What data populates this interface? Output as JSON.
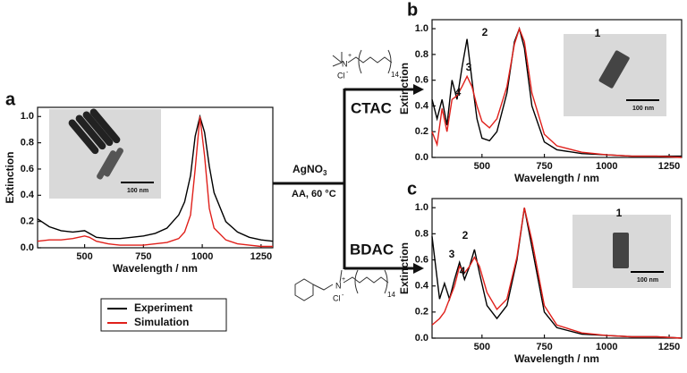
{
  "chart_data": [
    {
      "type": "line",
      "panel_label": "a",
      "x_label": "Wavelength / nm",
      "y_label": "Extinction",
      "x": [
        300,
        350,
        400,
        450,
        500,
        520,
        550,
        600,
        650,
        700,
        750,
        800,
        850,
        900,
        925,
        950,
        970,
        990,
        1010,
        1030,
        1050,
        1100,
        1150,
        1200,
        1250,
        1300
      ],
      "series": [
        {
          "name": "Experiment",
          "color": "#000000",
          "values": [
            0.22,
            0.16,
            0.13,
            0.12,
            0.13,
            0.11,
            0.08,
            0.07,
            0.07,
            0.08,
            0.09,
            0.11,
            0.15,
            0.25,
            0.35,
            0.55,
            0.85,
            1.0,
            0.88,
            0.62,
            0.42,
            0.2,
            0.12,
            0.08,
            0.06,
            0.05
          ]
        },
        {
          "name": "Simulation",
          "color": "#e0201b",
          "values": [
            0.05,
            0.06,
            0.06,
            0.07,
            0.09,
            0.08,
            0.05,
            0.03,
            0.02,
            0.02,
            0.02,
            0.03,
            0.04,
            0.07,
            0.12,
            0.25,
            0.6,
            1.0,
            0.7,
            0.3,
            0.15,
            0.06,
            0.03,
            0.02,
            0.01,
            0.01
          ]
        }
      ],
      "xlim": [
        300,
        1300
      ],
      "xticks": [
        500,
        750,
        1000,
        1250
      ],
      "ylim": [
        0,
        1.07
      ],
      "yticks": [
        {
          "value": 0,
          "label": "0.0"
        },
        {
          "value": 0.2,
          "label": "0.2"
        },
        {
          "value": 0.4,
          "label": "0.4"
        },
        {
          "value": 0.6,
          "label": "0.6"
        },
        {
          "value": 0.8,
          "label": "0.8"
        },
        {
          "value": 1,
          "label": "1.0"
        }
      ],
      "inset_scale": "100 nm",
      "legend": "below"
    },
    {
      "type": "line",
      "panel_label": "b",
      "x_label": "Wavelength / nm",
      "y_label": "Extinction",
      "x": [
        300,
        320,
        340,
        360,
        380,
        400,
        420,
        440,
        460,
        480,
        500,
        530,
        560,
        600,
        630,
        650,
        670,
        700,
        750,
        800,
        900,
        1000,
        1100,
        1200,
        1300
      ],
      "series": [
        {
          "name": "Experiment",
          "color": "#000000",
          "values": [
            0.45,
            0.3,
            0.45,
            0.25,
            0.6,
            0.45,
            0.7,
            0.92,
            0.6,
            0.3,
            0.15,
            0.13,
            0.2,
            0.5,
            0.9,
            1.0,
            0.85,
            0.4,
            0.12,
            0.06,
            0.03,
            0.02,
            0.01,
            0.01,
            0.01
          ]
        },
        {
          "name": "Simulation",
          "color": "#e0201b",
          "values": [
            0.2,
            0.1,
            0.38,
            0.2,
            0.45,
            0.48,
            0.55,
            0.63,
            0.55,
            0.4,
            0.28,
            0.23,
            0.3,
            0.55,
            0.88,
            1.0,
            0.9,
            0.5,
            0.18,
            0.09,
            0.04,
            0.02,
            0.01,
            0.01,
            0.0
          ]
        }
      ],
      "xlim": [
        300,
        1300
      ],
      "xticks": [
        500,
        750,
        1000,
        1250
      ],
      "ylim": [
        0,
        1.07
      ],
      "yticks": [
        {
          "value": 0,
          "label": "0.0"
        },
        {
          "value": 0.2,
          "label": "0.2"
        },
        {
          "value": 0.4,
          "label": "0.4"
        },
        {
          "value": 0.6,
          "label": "0.6"
        },
        {
          "value": 0.8,
          "label": "0.8"
        },
        {
          "value": 1,
          "label": "1.0"
        }
      ],
      "annotations": [
        "1",
        "2",
        "3",
        "4"
      ],
      "inset_scale": "100 nm"
    },
    {
      "type": "line",
      "panel_label": "c",
      "x_label": "Wavelength / nm",
      "y_label": "Extinction",
      "x": [
        300,
        330,
        350,
        370,
        390,
        410,
        430,
        450,
        470,
        490,
        520,
        560,
        600,
        640,
        670,
        700,
        750,
        800,
        900,
        1000,
        1100,
        1200,
        1300
      ],
      "series": [
        {
          "name": "Experiment",
          "color": "#000000",
          "values": [
            0.78,
            0.3,
            0.42,
            0.3,
            0.45,
            0.58,
            0.45,
            0.55,
            0.68,
            0.5,
            0.25,
            0.15,
            0.25,
            0.6,
            1.0,
            0.7,
            0.2,
            0.08,
            0.03,
            0.02,
            0.01,
            0.01,
            0.0
          ]
        },
        {
          "name": "Simulation",
          "color": "#e0201b",
          "values": [
            0.1,
            0.15,
            0.2,
            0.3,
            0.4,
            0.55,
            0.5,
            0.55,
            0.62,
            0.55,
            0.35,
            0.22,
            0.3,
            0.62,
            1.0,
            0.75,
            0.25,
            0.1,
            0.04,
            0.02,
            0.01,
            0.01,
            0.0
          ]
        }
      ],
      "xlim": [
        300,
        1300
      ],
      "xticks": [
        500,
        750,
        1000,
        1250
      ],
      "ylim": [
        0,
        1.07
      ],
      "yticks": [
        {
          "value": 0,
          "label": "0.0"
        },
        {
          "value": 0.2,
          "label": "0.2"
        },
        {
          "value": 0.4,
          "label": "0.4"
        },
        {
          "value": 0.6,
          "label": "0.6"
        },
        {
          "value": 0.8,
          "label": "0.8"
        },
        {
          "value": 1,
          "label": "1.0"
        }
      ],
      "annotations": [
        "1",
        "2",
        "3",
        "4"
      ],
      "inset_scale": "100 nm"
    }
  ],
  "scheme": {
    "reagent": "AgNO",
    "reagent_sub": "3",
    "conditions": "AA, 60 °C",
    "top_surfactant": "CTAC",
    "bottom_surfactant": "BDAC",
    "nitrogen": "N",
    "charge": "+",
    "chloride": "Cl",
    "minus": "-",
    "chain_count": "14"
  }
}
